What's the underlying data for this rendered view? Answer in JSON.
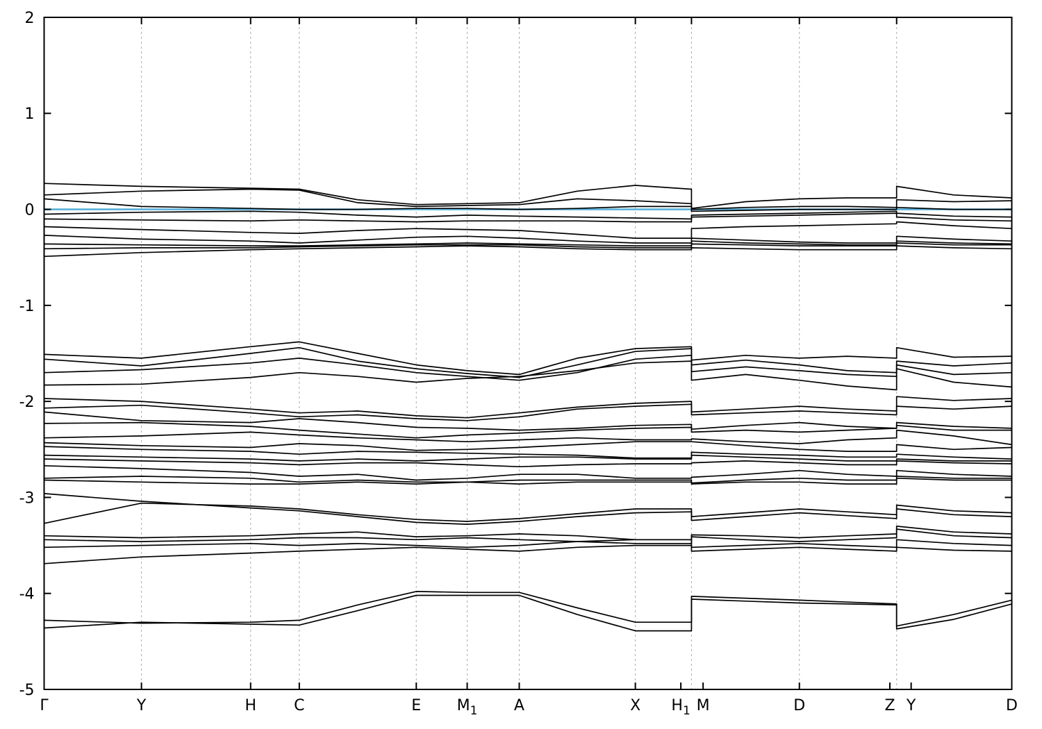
{
  "figure": {
    "background": "#ffffff",
    "plot_border_color": "#000000"
  },
  "chart_data": {
    "type": "line",
    "title": "",
    "subtitle": "",
    "xlabel": "",
    "ylabel": "",
    "legend": "none",
    "grid": "vertical-dashed",
    "grid_color": "#aaaaaa",
    "band_color": "#000000",
    "ylim": [
      -5,
      2
    ],
    "yticks": [
      2,
      1,
      0,
      -1,
      -2,
      -3,
      -4,
      -5
    ],
    "ytick_labels": [
      "2",
      "1",
      "0",
      "-1",
      "-2",
      "-3",
      "-4",
      "-5"
    ],
    "kpoint_labels": [
      {
        "label": "Γ",
        "x": 0.0
      },
      {
        "label": "Y",
        "x": 0.1006
      },
      {
        "label": "H",
        "x": 0.2134
      },
      {
        "label": "C",
        "x": 0.2637
      },
      {
        "label": "E",
        "x": 0.3846
      },
      {
        "label": "M_1",
        "x": 0.4372
      },
      {
        "label": "A",
        "x": 0.491
      },
      {
        "label": "X",
        "x": 0.611
      },
      {
        "label": "H_1",
        "x": 0.658
      },
      {
        "label": "M",
        "x": 0.681
      },
      {
        "label": "D",
        "x": 0.7805
      },
      {
        "label": "Z",
        "x": 0.874
      },
      {
        "label": "Y",
        "x": 0.896
      },
      {
        "label": "D",
        "x": 1.0
      }
    ],
    "gridlines_x": [
      0.1006,
      0.2134,
      0.2637,
      0.3846,
      0.4372,
      0.491,
      0.611,
      0.669,
      0.7805,
      0.881
    ],
    "panel_breaks_x": [
      0.669,
      0.881
    ],
    "fermi_line": {
      "energy": 0.0,
      "color": "#5ab0d8"
    },
    "stations_x": [
      0.0,
      0.1006,
      0.2134,
      0.2637,
      0.324,
      0.3846,
      0.4372,
      0.491,
      0.551,
      0.611,
      0.669,
      0.669,
      0.725,
      0.7805,
      0.83,
      0.881,
      0.881,
      0.94,
      1.0
    ],
    "bands": [
      [
        0.27,
        0.24,
        0.22,
        0.21,
        0.1,
        0.05,
        0.06,
        0.07,
        0.19,
        0.25,
        0.21,
        0.01,
        0.08,
        0.11,
        0.12,
        0.12,
        0.24,
        0.15,
        0.12
      ],
      [
        0.15,
        0.19,
        0.21,
        0.2,
        0.07,
        0.03,
        0.04,
        0.05,
        0.11,
        0.09,
        0.06,
        0.0,
        0.02,
        0.03,
        0.03,
        0.02,
        0.1,
        0.08,
        0.09
      ],
      [
        0.11,
        0.03,
        0.01,
        0.0,
        0.0,
        0.01,
        0.01,
        0.0,
        0.01,
        0.03,
        0.03,
        -0.02,
        -0.01,
        0.0,
        0.0,
        0.0,
        0.02,
        0.0,
        0.0
      ],
      [
        -0.05,
        -0.03,
        -0.02,
        -0.03,
        -0.06,
        -0.08,
        -0.06,
        -0.07,
        -0.08,
        -0.09,
        -0.1,
        -0.06,
        -0.05,
        -0.04,
        -0.03,
        -0.02,
        -0.04,
        -0.07,
        -0.08
      ],
      [
        -0.1,
        -0.11,
        -0.12,
        -0.11,
        -0.12,
        -0.13,
        -0.12,
        -0.12,
        -0.12,
        -0.13,
        -0.13,
        -0.08,
        -0.07,
        -0.06,
        -0.05,
        -0.04,
        -0.08,
        -0.11,
        -0.12
      ],
      [
        -0.18,
        -0.21,
        -0.24,
        -0.25,
        -0.22,
        -0.2,
        -0.21,
        -0.22,
        -0.26,
        -0.3,
        -0.3,
        -0.2,
        -0.18,
        -0.17,
        -0.16,
        -0.15,
        -0.13,
        -0.17,
        -0.2
      ],
      [
        -0.27,
        -0.31,
        -0.33,
        -0.35,
        -0.32,
        -0.29,
        -0.28,
        -0.3,
        -0.33,
        -0.35,
        -0.35,
        -0.3,
        -0.32,
        -0.34,
        -0.35,
        -0.35,
        -0.28,
        -0.31,
        -0.33
      ],
      [
        -0.36,
        -0.37,
        -0.38,
        -0.38,
        -0.37,
        -0.36,
        -0.35,
        -0.36,
        -0.37,
        -0.38,
        -0.38,
        -0.33,
        -0.35,
        -0.36,
        -0.37,
        -0.37,
        -0.33,
        -0.35,
        -0.36
      ],
      [
        -0.41,
        -0.4,
        -0.4,
        -0.39,
        -0.38,
        -0.37,
        -0.37,
        -0.37,
        -0.39,
        -0.4,
        -0.4,
        -0.36,
        -0.37,
        -0.38,
        -0.38,
        -0.38,
        -0.35,
        -0.37,
        -0.37
      ],
      [
        -0.49,
        -0.45,
        -0.42,
        -0.41,
        -0.4,
        -0.39,
        -0.38,
        -0.39,
        -0.41,
        -0.42,
        -0.42,
        -0.4,
        -0.41,
        -0.42,
        -0.42,
        -0.42,
        -0.38,
        -0.4,
        -0.41
      ],
      [
        -1.51,
        -1.55,
        -1.43,
        -1.38,
        -1.5,
        -1.62,
        -1.68,
        -1.72,
        -1.55,
        -1.45,
        -1.43,
        -1.57,
        -1.52,
        -1.55,
        -1.53,
        -1.55,
        -1.44,
        -1.54,
        -1.53
      ],
      [
        -1.56,
        -1.63,
        -1.5,
        -1.44,
        -1.58,
        -1.66,
        -1.71,
        -1.75,
        -1.62,
        -1.48,
        -1.45,
        -1.62,
        -1.57,
        -1.62,
        -1.68,
        -1.7,
        -1.58,
        -1.63,
        -1.6
      ],
      [
        -1.7,
        -1.67,
        -1.6,
        -1.55,
        -1.62,
        -1.7,
        -1.74,
        -1.78,
        -1.7,
        -1.56,
        -1.52,
        -1.69,
        -1.64,
        -1.68,
        -1.72,
        -1.74,
        -1.62,
        -1.72,
        -1.7
      ],
      [
        -1.83,
        -1.82,
        -1.75,
        -1.7,
        -1.74,
        -1.8,
        -1.76,
        -1.74,
        -1.68,
        -1.6,
        -1.58,
        -1.78,
        -1.72,
        -1.78,
        -1.84,
        -1.88,
        -1.66,
        -1.8,
        -1.85
      ],
      [
        -1.97,
        -2.0,
        -2.08,
        -2.12,
        -2.1,
        -2.15,
        -2.17,
        -2.12,
        -2.06,
        -2.02,
        -2.0,
        -2.11,
        -2.08,
        -2.05,
        -2.08,
        -2.1,
        -1.95,
        -1.99,
        -1.97
      ],
      [
        -2.07,
        -2.04,
        -2.12,
        -2.16,
        -2.14,
        -2.18,
        -2.2,
        -2.16,
        -2.08,
        -2.05,
        -2.03,
        -2.14,
        -2.12,
        -2.1,
        -2.12,
        -2.14,
        -2.05,
        -2.08,
        -2.05
      ],
      [
        -2.11,
        -2.2,
        -2.22,
        -2.18,
        -2.22,
        -2.27,
        -2.28,
        -2.3,
        -2.28,
        -2.25,
        -2.24,
        -2.29,
        -2.25,
        -2.22,
        -2.26,
        -2.28,
        -2.22,
        -2.26,
        -2.28
      ],
      [
        -2.23,
        -2.22,
        -2.26,
        -2.3,
        -2.34,
        -2.38,
        -2.35,
        -2.33,
        -2.3,
        -2.28,
        -2.27,
        -2.32,
        -2.3,
        -2.32,
        -2.3,
        -2.28,
        -2.25,
        -2.3,
        -2.3
      ],
      [
        -2.38,
        -2.36,
        -2.32,
        -2.35,
        -2.38,
        -2.4,
        -2.42,
        -2.4,
        -2.38,
        -2.4,
        -2.4,
        -2.39,
        -2.42,
        -2.44,
        -2.4,
        -2.38,
        -2.3,
        -2.36,
        -2.45
      ],
      [
        -2.43,
        -2.46,
        -2.48,
        -2.44,
        -2.46,
        -2.51,
        -2.5,
        -2.48,
        -2.45,
        -2.42,
        -2.42,
        -2.42,
        -2.46,
        -2.5,
        -2.52,
        -2.52,
        -2.45,
        -2.5,
        -2.48
      ],
      [
        -2.47,
        -2.5,
        -2.52,
        -2.55,
        -2.52,
        -2.53,
        -2.54,
        -2.55,
        -2.56,
        -2.59,
        -2.59,
        -2.53,
        -2.55,
        -2.56,
        -2.58,
        -2.58,
        -2.55,
        -2.58,
        -2.6
      ],
      [
        -2.56,
        -2.58,
        -2.6,
        -2.62,
        -2.6,
        -2.62,
        -2.6,
        -2.58,
        -2.58,
        -2.6,
        -2.6,
        -2.56,
        -2.58,
        -2.6,
        -2.62,
        -2.62,
        -2.6,
        -2.62,
        -2.62
      ],
      [
        -2.6,
        -2.62,
        -2.64,
        -2.66,
        -2.64,
        -2.64,
        -2.66,
        -2.68,
        -2.66,
        -2.65,
        -2.65,
        -2.64,
        -2.62,
        -2.64,
        -2.66,
        -2.66,
        -2.62,
        -2.64,
        -2.65
      ],
      [
        -2.67,
        -2.7,
        -2.74,
        -2.78,
        -2.76,
        -2.82,
        -2.8,
        -2.76,
        -2.76,
        -2.8,
        -2.8,
        -2.79,
        -2.76,
        -2.72,
        -2.76,
        -2.78,
        -2.72,
        -2.76,
        -2.78
      ],
      [
        -2.8,
        -2.78,
        -2.8,
        -2.84,
        -2.82,
        -2.84,
        -2.84,
        -2.82,
        -2.82,
        -2.82,
        -2.82,
        -2.85,
        -2.82,
        -2.8,
        -2.82,
        -2.82,
        -2.78,
        -2.8,
        -2.8
      ],
      [
        -2.82,
        -2.84,
        -2.86,
        -2.86,
        -2.84,
        -2.86,
        -2.84,
        -2.86,
        -2.84,
        -2.84,
        -2.84,
        -2.86,
        -2.84,
        -2.84,
        -2.86,
        -2.86,
        -2.8,
        -2.82,
        -2.82
      ],
      [
        -2.96,
        -3.04,
        -3.11,
        -3.14,
        -3.2,
        -3.26,
        -3.28,
        -3.25,
        -3.2,
        -3.16,
        -3.15,
        -3.24,
        -3.2,
        -3.16,
        -3.19,
        -3.22,
        -3.12,
        -3.18,
        -3.2
      ],
      [
        -3.27,
        -3.06,
        -3.09,
        -3.12,
        -3.18,
        -3.23,
        -3.25,
        -3.22,
        -3.17,
        -3.12,
        -3.12,
        -3.2,
        -3.16,
        -3.12,
        -3.15,
        -3.18,
        -3.08,
        -3.14,
        -3.16
      ],
      [
        -3.4,
        -3.42,
        -3.4,
        -3.38,
        -3.36,
        -3.41,
        -3.4,
        -3.38,
        -3.4,
        -3.44,
        -3.44,
        -3.39,
        -3.4,
        -3.42,
        -3.4,
        -3.38,
        -3.3,
        -3.36,
        -3.38
      ],
      [
        -3.44,
        -3.46,
        -3.44,
        -3.42,
        -3.42,
        -3.44,
        -3.42,
        -3.44,
        -3.46,
        -3.48,
        -3.48,
        -3.41,
        -3.44,
        -3.46,
        -3.44,
        -3.42,
        -3.33,
        -3.4,
        -3.42
      ],
      [
        -3.52,
        -3.5,
        -3.48,
        -3.5,
        -3.48,
        -3.5,
        -3.52,
        -3.5,
        -3.46,
        -3.44,
        -3.44,
        -3.52,
        -3.5,
        -3.48,
        -3.5,
        -3.52,
        -3.44,
        -3.48,
        -3.5
      ],
      [
        -3.69,
        -3.62,
        -3.58,
        -3.56,
        -3.54,
        -3.52,
        -3.54,
        -3.56,
        -3.52,
        -3.5,
        -3.5,
        -3.56,
        -3.54,
        -3.52,
        -3.54,
        -3.56,
        -3.52,
        -3.55,
        -3.56
      ],
      [
        -4.28,
        -4.31,
        -4.3,
        -4.28,
        -4.12,
        -3.98,
        -3.99,
        -3.99,
        -4.15,
        -4.3,
        -4.3,
        -4.03,
        -4.05,
        -4.07,
        -4.09,
        -4.11,
        -4.34,
        -4.22,
        -4.07
      ],
      [
        -4.36,
        -4.3,
        -4.32,
        -4.33,
        -4.18,
        -4.02,
        -4.02,
        -4.02,
        -4.22,
        -4.39,
        -4.39,
        -4.06,
        -4.08,
        -4.1,
        -4.11,
        -4.12,
        -4.37,
        -4.27,
        -4.11
      ]
    ]
  }
}
